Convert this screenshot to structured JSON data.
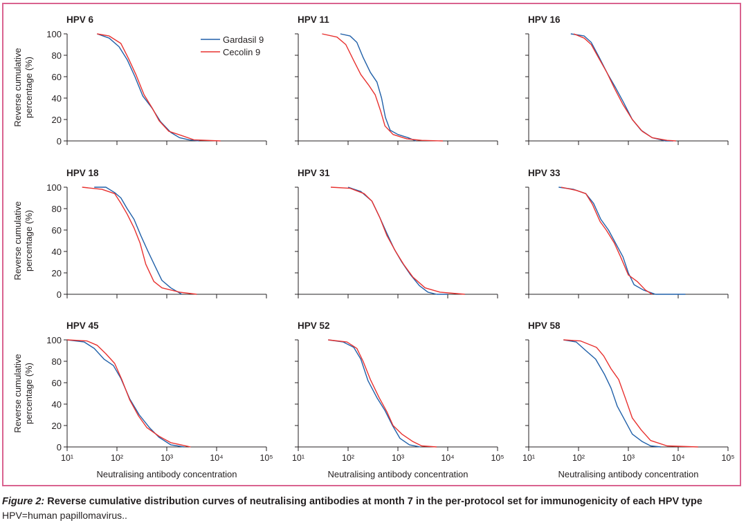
{
  "figure": {
    "number_label": "Figure 2:",
    "title": " Reverse cumulative distribution curves of neutralising antibodies at month 7 in the per-protocol set for immunogenicity of each HPV type",
    "footnote": "HPV=human papillomavirus.."
  },
  "colors": {
    "gardasil": "#1f5fa8",
    "cecolin": "#e8302e",
    "border": "#d9628f",
    "axis": "#231f20"
  },
  "chart_data": {
    "type": "line",
    "layout": "3x3 grid of panels",
    "xlabel": "Neutralising antibody concentration",
    "ylabel_line1": "Reverse cumulative",
    "ylabel_line2": "percentage (%)",
    "xscale": "log",
    "xlim": [
      10,
      100000
    ],
    "ylim": [
      0,
      100
    ],
    "x_tick_labels": [
      "10¹",
      "10²",
      "10³",
      "10⁴",
      "10⁵"
    ],
    "x_ticks": [
      10,
      100,
      1000,
      10000,
      100000
    ],
    "y_ticks": [
      0,
      20,
      40,
      60,
      80,
      100
    ],
    "legend": {
      "position": "top-right of first panel",
      "entries": [
        "Gardasil 9",
        "Cecolin 9"
      ]
    },
    "panels": [
      {
        "title": "HPV 6",
        "series": [
          {
            "name": "Gardasil 9",
            "points": [
              [
                40,
                100
              ],
              [
                70,
                96
              ],
              [
                110,
                88
              ],
              [
                160,
                76
              ],
              [
                230,
                60
              ],
              [
                330,
                42
              ],
              [
                500,
                31
              ],
              [
                750,
                18
              ],
              [
                1200,
                8
              ],
              [
                1800,
                3
              ],
              [
                2800,
                1
              ],
              [
                4500,
                0
              ]
            ]
          },
          {
            "name": "Cecolin 9",
            "points": [
              [
                40,
                100
              ],
              [
                70,
                98
              ],
              [
                120,
                91
              ],
              [
                170,
                77
              ],
              [
                240,
                62
              ],
              [
                350,
                43
              ],
              [
                520,
                30
              ],
              [
                700,
                19
              ],
              [
                1100,
                9
              ],
              [
                2000,
                5
              ],
              [
                3500,
                1
              ],
              [
                12000,
                0
              ]
            ]
          }
        ]
      },
      {
        "title": "HPV 11",
        "series": [
          {
            "name": "Gardasil 9",
            "points": [
              [
                70,
                100
              ],
              [
                110,
                98
              ],
              [
                150,
                92
              ],
              [
                200,
                78
              ],
              [
                280,
                64
              ],
              [
                380,
                55
              ],
              [
                470,
                40
              ],
              [
                560,
                22
              ],
              [
                700,
                10
              ],
              [
                1000,
                6
              ],
              [
                1600,
                3
              ],
              [
                2300,
                0
              ]
            ]
          },
          {
            "name": "Cecolin 9",
            "points": [
              [
                30,
                100
              ],
              [
                60,
                97
              ],
              [
                90,
                90
              ],
              [
                130,
                75
              ],
              [
                180,
                62
              ],
              [
                260,
                52
              ],
              [
                350,
                43
              ],
              [
                450,
                28
              ],
              [
                550,
                14
              ],
              [
                800,
                6
              ],
              [
                1500,
                2
              ],
              [
                3000,
                0.5
              ],
              [
                8000,
                0
              ]
            ]
          }
        ]
      },
      {
        "title": "HPV 16",
        "series": [
          {
            "name": "Gardasil 9",
            "points": [
              [
                70,
                100
              ],
              [
                130,
                98
              ],
              [
                180,
                92
              ],
              [
                260,
                78
              ],
              [
                380,
                63
              ],
              [
                550,
                50
              ],
              [
                800,
                36
              ],
              [
                1200,
                20
              ],
              [
                1800,
                10
              ],
              [
                3000,
                3
              ],
              [
                5500,
                0
              ],
              [
                8000,
                0
              ]
            ]
          },
          {
            "name": "Cecolin 9",
            "points": [
              [
                80,
                100
              ],
              [
                130,
                96
              ],
              [
                180,
                90
              ],
              [
                250,
                78
              ],
              [
                370,
                64
              ],
              [
                530,
                49
              ],
              [
                780,
                34
              ],
              [
                1200,
                20
              ],
              [
                1900,
                9
              ],
              [
                3000,
                3
              ],
              [
                6000,
                0.5
              ],
              [
                9000,
                0
              ]
            ]
          }
        ]
      },
      {
        "title": "HPV 18",
        "series": [
          {
            "name": "Gardasil 9",
            "points": [
              [
                35,
                100
              ],
              [
                60,
                100
              ],
              [
                90,
                95
              ],
              [
                120,
                90
              ],
              [
                160,
                80
              ],
              [
                220,
                70
              ],
              [
                300,
                55
              ],
              [
                420,
                40
              ],
              [
                600,
                25
              ],
              [
                800,
                13
              ],
              [
                1200,
                6
              ],
              [
                2000,
                0
              ]
            ]
          },
          {
            "name": "Cecolin 9",
            "points": [
              [
                20,
                100
              ],
              [
                50,
                98
              ],
              [
                90,
                94
              ],
              [
                120,
                85
              ],
              [
                160,
                75
              ],
              [
                220,
                62
              ],
              [
                290,
                48
              ],
              [
                380,
                28
              ],
              [
                550,
                12
              ],
              [
                800,
                6
              ],
              [
                1800,
                2
              ],
              [
                4000,
                0
              ]
            ]
          }
        ]
      },
      {
        "title": "HPV 31",
        "series": [
          {
            "name": "Gardasil 9",
            "points": [
              [
                100,
                100
              ],
              [
                180,
                96
              ],
              [
                300,
                87
              ],
              [
                430,
                72
              ],
              [
                600,
                57
              ],
              [
                850,
                42
              ],
              [
                1200,
                30
              ],
              [
                1800,
                18
              ],
              [
                2700,
                8
              ],
              [
                4000,
                2
              ],
              [
                6000,
                0
              ],
              [
                10000,
                0
              ]
            ]
          },
          {
            "name": "Cecolin 9",
            "points": [
              [
                45,
                100
              ],
              [
                110,
                99
              ],
              [
                210,
                94
              ],
              [
                300,
                87
              ],
              [
                430,
                72
              ],
              [
                600,
                55
              ],
              [
                900,
                40
              ],
              [
                1300,
                28
              ],
              [
                2000,
                16
              ],
              [
                3500,
                6
              ],
              [
                7000,
                2
              ],
              [
                22000,
                0
              ]
            ]
          }
        ]
      },
      {
        "title": "HPV 33",
        "series": [
          {
            "name": "Gardasil 9",
            "points": [
              [
                40,
                100
              ],
              [
                80,
                98
              ],
              [
                140,
                94
              ],
              [
                200,
                85
              ],
              [
                280,
                70
              ],
              [
                400,
                60
              ],
              [
                550,
                48
              ],
              [
                780,
                35
              ],
              [
                1000,
                20
              ],
              [
                1300,
                9
              ],
              [
                2000,
                4
              ],
              [
                3500,
                0
              ],
              [
                14000,
                0
              ]
            ]
          },
          {
            "name": "Cecolin 9",
            "points": [
              [
                45,
                100
              ],
              [
                90,
                97
              ],
              [
                140,
                94
              ],
              [
                190,
                84
              ],
              [
                270,
                68
              ],
              [
                360,
                60
              ],
              [
                520,
                48
              ],
              [
                700,
                35
              ],
              [
                1000,
                18
              ],
              [
                1500,
                12
              ],
              [
                2200,
                4
              ],
              [
                3000,
                0
              ]
            ]
          }
        ]
      },
      {
        "title": "HPV 45",
        "series": [
          {
            "name": "Gardasil 9",
            "points": [
              [
                10,
                100
              ],
              [
                22,
                98
              ],
              [
                35,
                92
              ],
              [
                55,
                82
              ],
              [
                85,
                76
              ],
              [
                120,
                64
              ],
              [
                180,
                45
              ],
              [
                280,
                30
              ],
              [
                450,
                18
              ],
              [
                700,
                9
              ],
              [
                1200,
                2
              ],
              [
                2200,
                0
              ]
            ]
          },
          {
            "name": "Cecolin 9",
            "points": [
              [
                10,
                100
              ],
              [
                25,
                99
              ],
              [
                40,
                95
              ],
              [
                60,
                87
              ],
              [
                90,
                78
              ],
              [
                125,
                63
              ],
              [
                180,
                44
              ],
              [
                270,
                29
              ],
              [
                400,
                18
              ],
              [
                700,
                10
              ],
              [
                1200,
                4
              ],
              [
                3000,
                0
              ]
            ]
          }
        ]
      },
      {
        "title": "HPV 52",
        "series": [
          {
            "name": "Gardasil 9",
            "points": [
              [
                40,
                100
              ],
              [
                80,
                98
              ],
              [
                130,
                93
              ],
              [
                180,
                82
              ],
              [
                250,
                62
              ],
              [
                380,
                46
              ],
              [
                550,
                34
              ],
              [
                780,
                20
              ],
              [
                1100,
                8
              ],
              [
                1700,
                2
              ],
              [
                2800,
                0
              ]
            ]
          },
          {
            "name": "Cecolin 9",
            "points": [
              [
                40,
                100
              ],
              [
                95,
                98
              ],
              [
                150,
                92
              ],
              [
                200,
                80
              ],
              [
                280,
                63
              ],
              [
                420,
                46
              ],
              [
                600,
                33
              ],
              [
                800,
                20
              ],
              [
                1200,
                12
              ],
              [
                2000,
                5
              ],
              [
                3000,
                1
              ],
              [
                6000,
                0
              ]
            ]
          }
        ]
      },
      {
        "title": "HPV 58",
        "series": [
          {
            "name": "Gardasil 9",
            "points": [
              [
                50,
                100
              ],
              [
                90,
                98
              ],
              [
                140,
                90
              ],
              [
                220,
                82
              ],
              [
                330,
                68
              ],
              [
                450,
                55
              ],
              [
                600,
                38
              ],
              [
                850,
                25
              ],
              [
                1200,
                12
              ],
              [
                1900,
                5
              ],
              [
                2800,
                1
              ],
              [
                4500,
                0
              ]
            ]
          },
          {
            "name": "Cecolin 9",
            "points": [
              [
                50,
                100
              ],
              [
                110,
                99
              ],
              [
                230,
                93
              ],
              [
                320,
                85
              ],
              [
                450,
                73
              ],
              [
                640,
                63
              ],
              [
                880,
                45
              ],
              [
                1200,
                27
              ],
              [
                1800,
                16
              ],
              [
                2800,
                6
              ],
              [
                6000,
                1
              ],
              [
                25000,
                0
              ]
            ]
          }
        ]
      }
    ]
  }
}
